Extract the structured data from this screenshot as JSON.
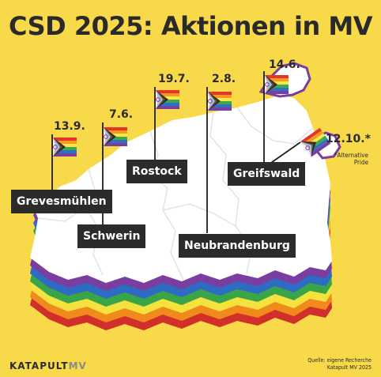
{
  "title": "CSD 2025: Aktionen in MV",
  "events": [
    {
      "city": "Grevesmühlen",
      "date": "13.9."
    },
    {
      "city": "Schwerin",
      "date": "7.6."
    },
    {
      "city": "Rostock",
      "date": "19.7."
    },
    {
      "city": "Neubrandenburg",
      "date": "2.8."
    },
    {
      "city": "Greifswald",
      "date": "14.6."
    },
    {
      "city": "",
      "date": "12.10.*",
      "note": "*Alternative Pride"
    }
  ],
  "footer": {
    "brand_main": "KATAPULT",
    "brand_sub": "MV",
    "source": "Quelle: eigene Recherche",
    "license": "Katapult MV 2025"
  },
  "colors": {
    "background": "#f8d94a",
    "label_bg": "#2b2b2b",
    "rainbow": [
      "#e5352b",
      "#f39a1f",
      "#f7e64a",
      "#3ea84a",
      "#2f6fc4",
      "#7a3ea1"
    ]
  }
}
